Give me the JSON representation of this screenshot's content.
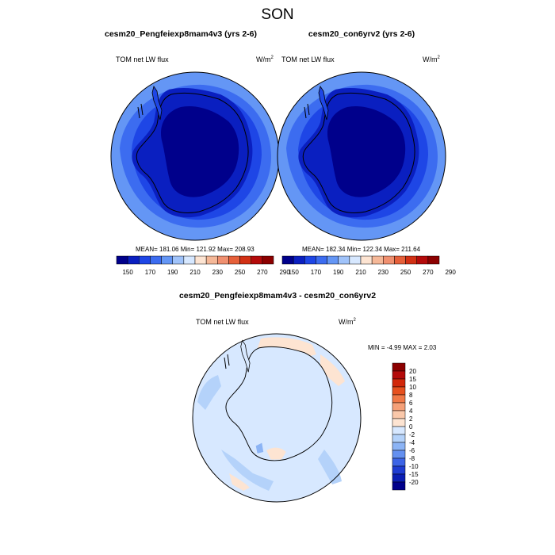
{
  "figure": {
    "title": "SON"
  },
  "panels": [
    {
      "title": "cesm20_Pengfeiexp8mam4v3 (yrs 2-6)",
      "left_label": "TOM net LW flux",
      "units_main": "W/m",
      "units_sup": "2",
      "stats": "MEAN= 181.06  Min= 121.92  Max= 208.93"
    },
    {
      "title": "cesm20_con6yrv2 (yrs 2-6)",
      "left_label": "TOM net LW flux",
      "units_main": "W/m",
      "units_sup": "2",
      "stats": "MEAN= 182.34  Min= 122.34  Max= 211.64"
    }
  ],
  "diff_panel": {
    "title": "cesm20_Pengfeiexp8mam4v3 - cesm20_con6yrv2",
    "left_label": "TOM net LW flux",
    "units_main": "W/m",
    "units_sup": "2",
    "stats": "MIN =  -4.99 MAX =   2.03"
  },
  "colorbar_main": {
    "colors": [
      "#00008b",
      "#0a1fc0",
      "#1e46e6",
      "#3c6cf0",
      "#6496f5",
      "#a0c3fa",
      "#d7e8ff",
      "#fde4d2",
      "#f5b898",
      "#f09070",
      "#e6603a",
      "#d23014",
      "#b40a0a",
      "#8c0000"
    ],
    "labels": [
      "150",
      "170",
      "190",
      "210",
      "230",
      "250",
      "270",
      "290"
    ]
  },
  "colorbar_diff": {
    "colors": [
      "#8c0000",
      "#b40a0a",
      "#d2280a",
      "#e6501e",
      "#f07846",
      "#f5a078",
      "#fac8aa",
      "#fde4d2",
      "#d7e8ff",
      "#b4d2fa",
      "#8cb4f5",
      "#6490f0",
      "#3c64e6",
      "#1e3cd2",
      "#0a1eb4",
      "#00008b"
    ],
    "labels": [
      "20",
      "15",
      "10",
      "8",
      "6",
      "4",
      "2",
      "0",
      "-2",
      "-4",
      "-6",
      "-8",
      "-10",
      "-15",
      "-20"
    ]
  },
  "chart_data": [
    {
      "type": "heatmap",
      "title": "cesm20_Pengfeiexp8mam4v3 (yrs 2-6)",
      "variable": "TOM net LW flux",
      "units": "W/m2",
      "projection": "south polar stereographic",
      "mean": 181.06,
      "min": 121.92,
      "max": 208.93,
      "contour_levels": [
        150,
        160,
        170,
        180,
        190,
        200,
        210,
        220,
        230,
        240,
        250,
        260,
        270,
        280,
        290
      ]
    },
    {
      "type": "heatmap",
      "title": "cesm20_con6yrv2 (yrs 2-6)",
      "variable": "TOM net LW flux",
      "units": "W/m2",
      "projection": "south polar stereographic",
      "mean": 182.34,
      "min": 122.34,
      "max": 211.64,
      "contour_levels": [
        150,
        160,
        170,
        180,
        190,
        200,
        210,
        220,
        230,
        240,
        250,
        260,
        270,
        280,
        290
      ]
    },
    {
      "type": "heatmap",
      "title": "cesm20_Pengfeiexp8mam4v3 - cesm20_con6yrv2",
      "variable": "TOM net LW flux",
      "units": "W/m2",
      "projection": "south polar stereographic",
      "min": -4.99,
      "max": 2.03,
      "contour_levels": [
        -20,
        -15,
        -10,
        -8,
        -6,
        -4,
        -2,
        0,
        2,
        4,
        6,
        8,
        10,
        15,
        20
      ]
    }
  ]
}
